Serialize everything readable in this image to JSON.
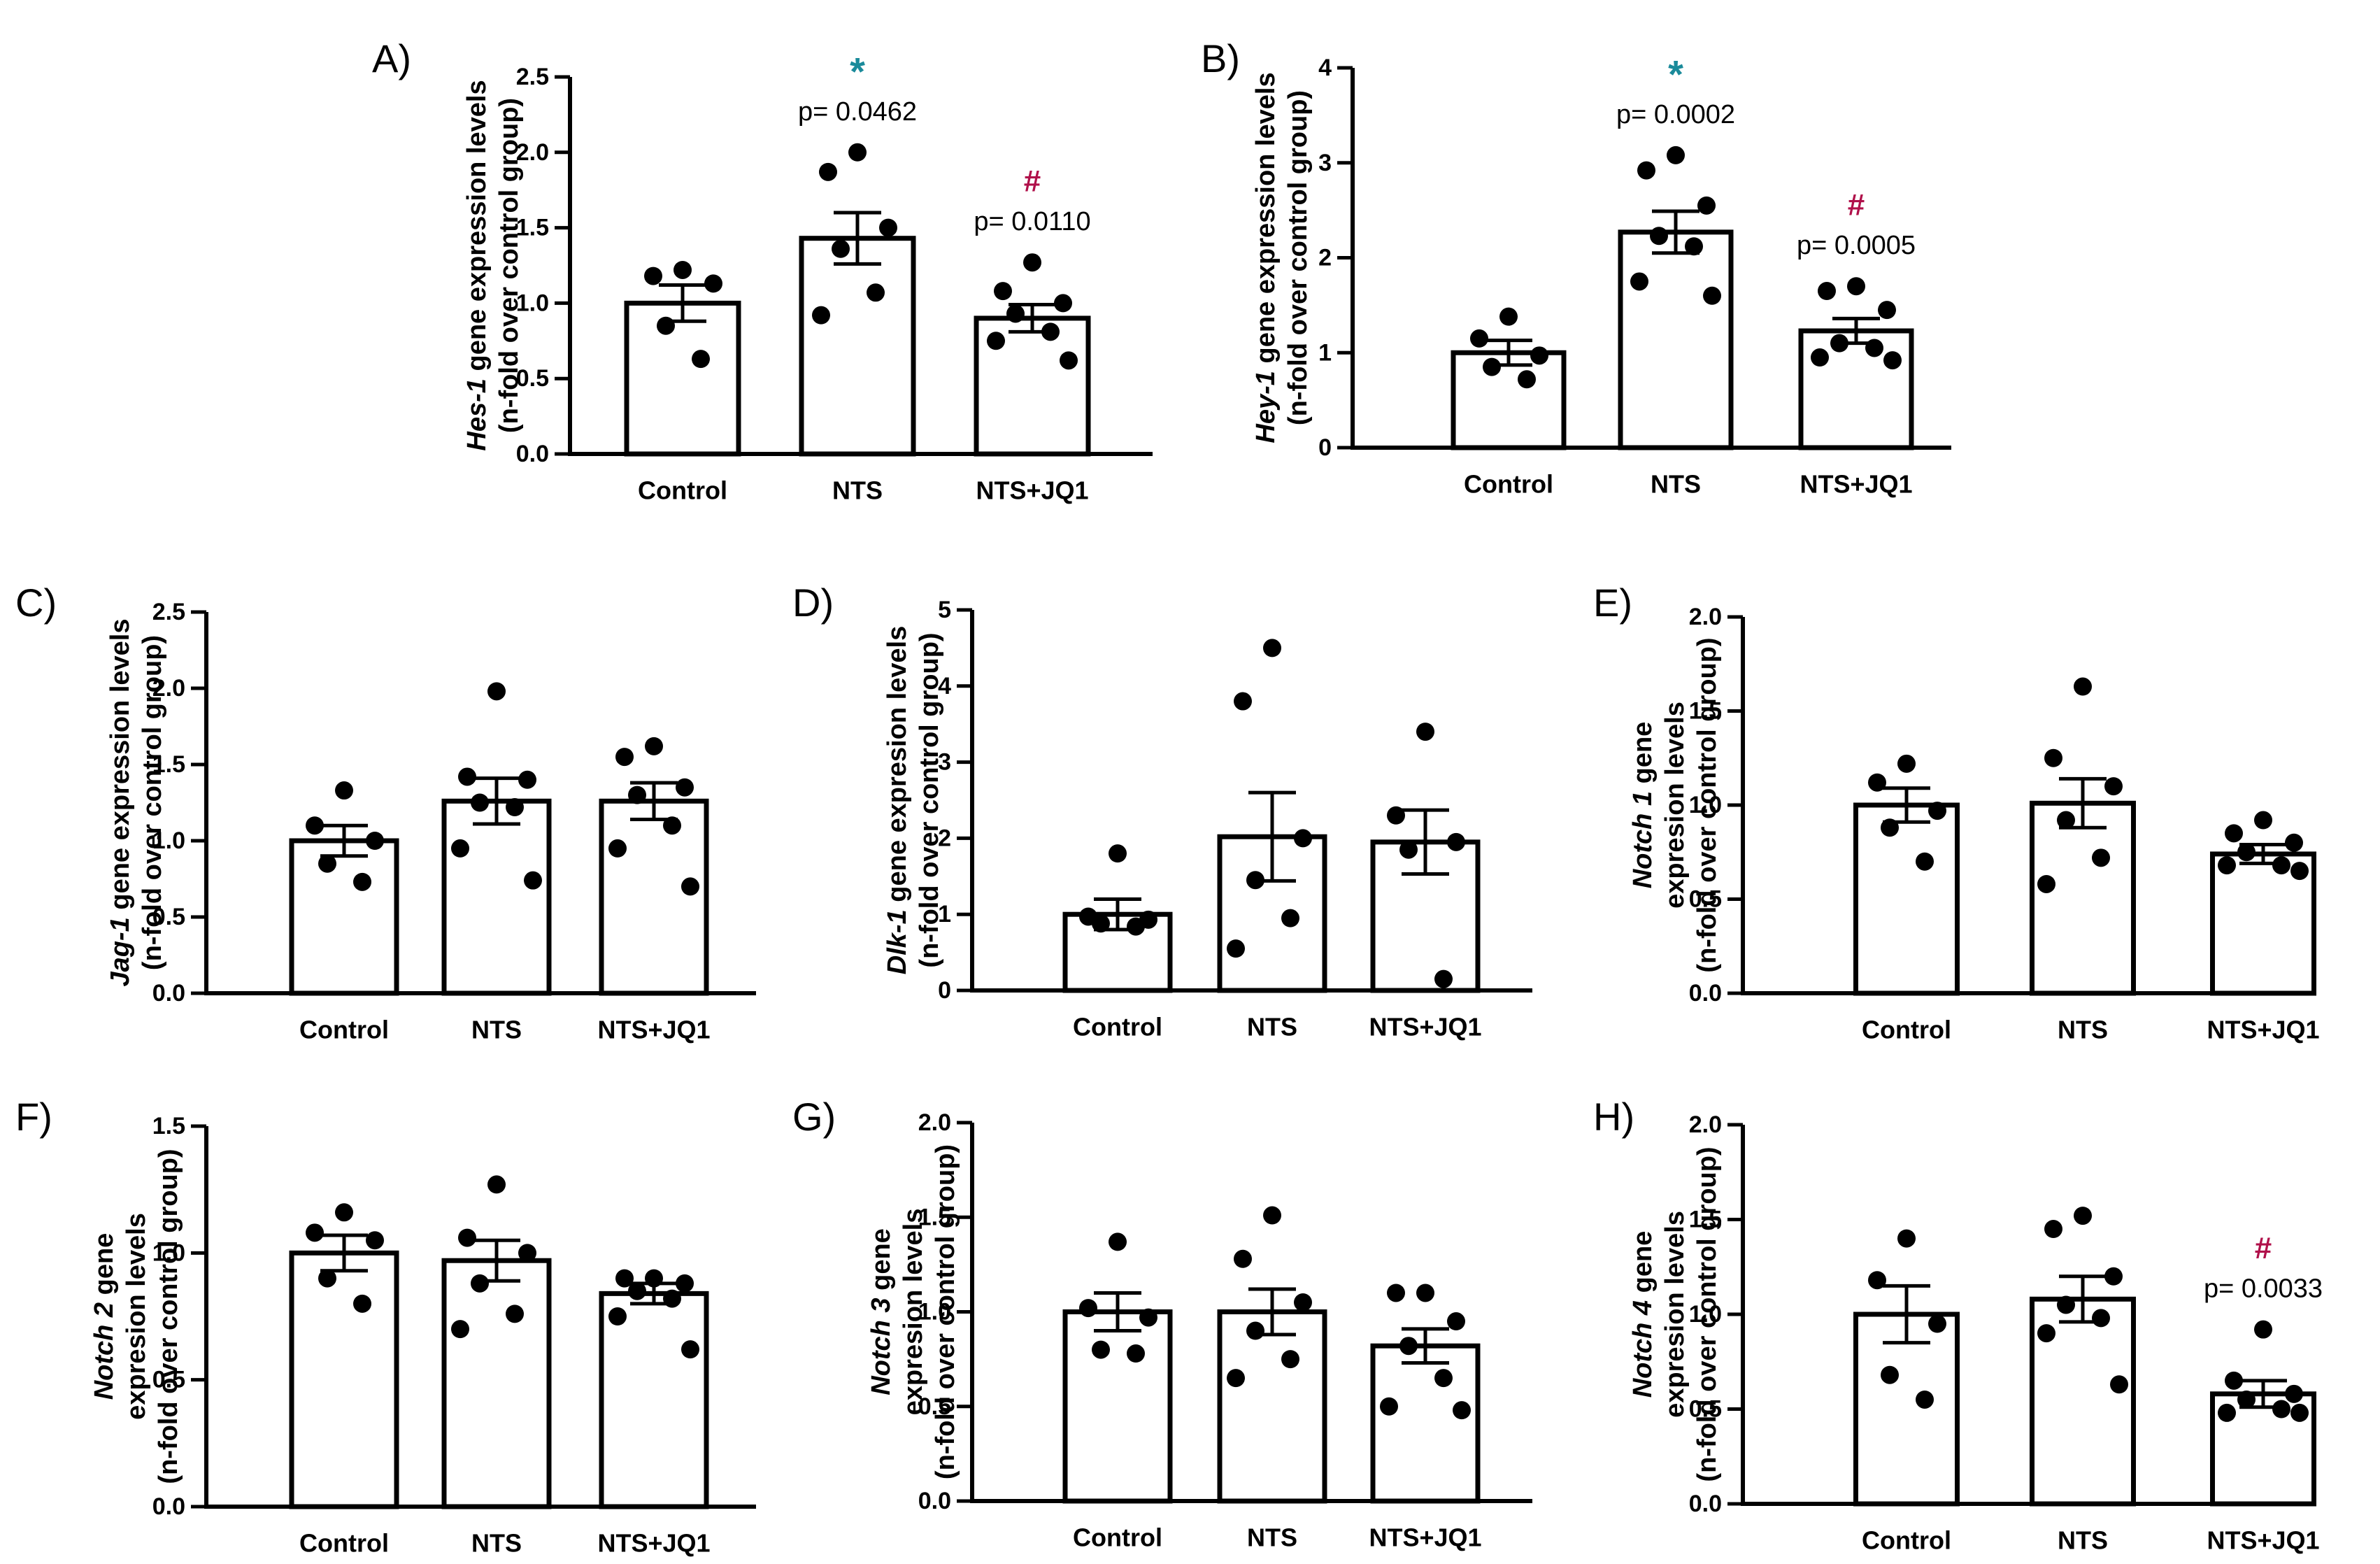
{
  "figure": {
    "categories": [
      "Control",
      "NTS",
      "NTS+JQ1"
    ],
    "colors": {
      "star": "#1a8a9a",
      "hash": "#b0104a",
      "ink": "#000000"
    }
  },
  "chart_data": [
    {
      "panel": "A)",
      "type": "bar",
      "ylabel_italic": "Hes-1",
      "ylabel_rest": " gene expression levels",
      "ylabel_line2": "(n-fold over control group)",
      "categories": [
        "Control",
        "NTS",
        "NTS+JQ1"
      ],
      "ylim": [
        0,
        2.5
      ],
      "yticks": [
        "0.0",
        "0.5",
        "1.0",
        "1.5",
        "2.0",
        "2.5"
      ],
      "series": [
        {
          "name": "mean",
          "values": [
            1.0,
            1.43,
            0.9
          ]
        }
      ],
      "sem": [
        0.12,
        0.17,
        0.09
      ],
      "points": [
        [
          1.22,
          1.18,
          1.13,
          0.85,
          0.63
        ],
        [
          2.0,
          1.87,
          1.5,
          1.36,
          1.07,
          0.92
        ],
        [
          1.27,
          1.08,
          1.0,
          0.93,
          0.81,
          0.75,
          0.62
        ]
      ],
      "annotations": [
        {
          "group": 1,
          "symbol": "*",
          "symbol_color": "star",
          "text": "p= 0.0462"
        },
        {
          "group": 2,
          "symbol": "#",
          "symbol_color": "hash",
          "text": "p= 0.0110"
        }
      ]
    },
    {
      "panel": "B)",
      "type": "bar",
      "ylabel_italic": "Hey-1",
      "ylabel_rest": " gene expression levels",
      "ylabel_line2": "(n-fold over control group)",
      "categories": [
        "Control",
        "NTS",
        "NTS+JQ1"
      ],
      "ylim": [
        0,
        4
      ],
      "yticks": [
        "0",
        "1",
        "2",
        "3",
        "4"
      ],
      "series": [
        {
          "name": "mean",
          "values": [
            1.0,
            2.27,
            1.23
          ]
        }
      ],
      "sem": [
        0.13,
        0.22,
        0.13
      ],
      "points": [
        [
          1.38,
          1.15,
          0.97,
          0.85,
          0.72
        ],
        [
          3.08,
          2.92,
          2.55,
          2.23,
          2.12,
          1.75,
          1.6
        ],
        [
          1.7,
          1.65,
          1.45,
          1.1,
          1.05,
          0.95,
          0.92
        ]
      ],
      "annotations": [
        {
          "group": 1,
          "symbol": "*",
          "symbol_color": "star",
          "text": "p= 0.0002"
        },
        {
          "group": 2,
          "symbol": "#",
          "symbol_color": "hash",
          "text": "p= 0.0005"
        }
      ]
    },
    {
      "panel": "C)",
      "type": "bar",
      "ylabel_italic": "Jag-1",
      "ylabel_rest": " gene expression levels",
      "ylabel_line2": "(n-fold over control group)",
      "categories": [
        "Control",
        "NTS",
        "NTS+JQ1"
      ],
      "ylim": [
        0,
        2.5
      ],
      "yticks": [
        "0.0",
        "0.5",
        "1.0",
        "1.5",
        "2.0",
        "2.5"
      ],
      "series": [
        {
          "name": "mean",
          "values": [
            1.0,
            1.26,
            1.26
          ]
        }
      ],
      "sem": [
        0.1,
        0.15,
        0.12
      ],
      "points": [
        [
          1.33,
          1.1,
          1.0,
          0.85,
          0.73
        ],
        [
          1.98,
          1.42,
          1.4,
          1.25,
          1.22,
          0.95,
          0.74
        ],
        [
          1.62,
          1.55,
          1.35,
          1.3,
          1.1,
          0.95,
          0.7
        ]
      ],
      "annotations": []
    },
    {
      "panel": "D)",
      "type": "bar",
      "ylabel_italic": "Dlk-1",
      "ylabel_rest": " gene expresion levels",
      "ylabel_line2": "(n-fold over control group)",
      "categories": [
        "Control",
        "NTS",
        "NTS+JQ1"
      ],
      "ylim": [
        0,
        5
      ],
      "yticks": [
        "0",
        "1",
        "2",
        "3",
        "4",
        "5"
      ],
      "series": [
        {
          "name": "mean",
          "values": [
            1.0,
            2.02,
            1.95
          ]
        }
      ],
      "sem": [
        0.2,
        0.58,
        0.42
      ],
      "points": [
        [
          1.8,
          0.97,
          0.93,
          0.88,
          0.84
        ],
        [
          4.5,
          3.8,
          2.0,
          1.45,
          0.95,
          0.55
        ],
        [
          3.4,
          2.3,
          1.95,
          1.85,
          0.15
        ]
      ],
      "annotations": []
    },
    {
      "panel": "E)",
      "type": "bar",
      "ylabel_italic": "Notch 1",
      "ylabel_rest": " gene",
      "ylabel_line2": "expresion  levels",
      "ylabel_line3": "(n-fold over control group)",
      "categories": [
        "Control",
        "NTS",
        "NTS+JQ1"
      ],
      "ylim": [
        0,
        2.0
      ],
      "yticks": [
        "0.0",
        "0.5",
        "1.0",
        "1.5",
        "2.0"
      ],
      "series": [
        {
          "name": "mean",
          "values": [
            1.0,
            1.01,
            0.74
          ]
        }
      ],
      "sem": [
        0.09,
        0.13,
        0.05
      ],
      "points": [
        [
          1.22,
          1.12,
          0.97,
          0.88,
          0.7
        ],
        [
          1.63,
          1.25,
          1.1,
          0.92,
          0.72,
          0.58
        ],
        [
          0.92,
          0.85,
          0.8,
          0.75,
          0.68,
          0.68,
          0.65
        ]
      ],
      "annotations": []
    },
    {
      "panel": "F)",
      "type": "bar",
      "ylabel_italic": "Notch 2",
      "ylabel_rest": " gene",
      "ylabel_line2": "expresion levels",
      "ylabel_line3": "(n-fold over control group)",
      "categories": [
        "Control",
        "NTS",
        "NTS+JQ1"
      ],
      "ylim": [
        0,
        1.5
      ],
      "yticks": [
        "0.0",
        "0.5",
        "1.0",
        "1.5"
      ],
      "series": [
        {
          "name": "mean",
          "values": [
            1.0,
            0.97,
            0.84
          ]
        }
      ],
      "sem": [
        0.07,
        0.08,
        0.04
      ],
      "points": [
        [
          1.16,
          1.08,
          1.05,
          0.9,
          0.8
        ],
        [
          1.27,
          1.06,
          1.0,
          0.88,
          0.76,
          0.7
        ],
        [
          0.9,
          0.9,
          0.88,
          0.85,
          0.82,
          0.75,
          0.62
        ]
      ],
      "annotations": []
    },
    {
      "panel": "G)",
      "type": "bar",
      "ylabel_italic": "Notch 3",
      "ylabel_rest": " gene",
      "ylabel_line2": "expresion  levels",
      "ylabel_line3": "(n-fold over control group)",
      "categories": [
        "Control",
        "NTS",
        "NTS+JQ1"
      ],
      "ylim": [
        0,
        2.0
      ],
      "yticks": [
        "0.0",
        "0.5",
        "1.0",
        "1.5",
        "2.0"
      ],
      "series": [
        {
          "name": "mean",
          "values": [
            1.0,
            1.0,
            0.82
          ]
        }
      ],
      "sem": [
        0.1,
        0.12,
        0.09
      ],
      "points": [
        [
          1.37,
          1.02,
          0.97,
          0.8,
          0.78
        ],
        [
          1.51,
          1.28,
          1.05,
          0.9,
          0.75,
          0.65
        ],
        [
          1.1,
          1.1,
          0.95,
          0.82,
          0.65,
          0.5,
          0.48
        ]
      ],
      "annotations": []
    },
    {
      "panel": "H)",
      "type": "bar",
      "ylabel_italic": "Notch 4",
      "ylabel_rest": " gene",
      "ylabel_line2": "expresion levels",
      "ylabel_line3": "(n-fold over control group)",
      "categories": [
        "Control",
        "NTS",
        "NTS+JQ1"
      ],
      "ylim": [
        0,
        2.0
      ],
      "yticks": [
        "0.0",
        "0.5",
        "1.0",
        "1.5",
        "2.0"
      ],
      "series": [
        {
          "name": "mean",
          "values": [
            1.0,
            1.08,
            0.58
          ]
        }
      ],
      "sem": [
        0.15,
        0.12,
        0.07
      ],
      "points": [
        [
          1.4,
          1.18,
          0.95,
          0.68,
          0.55
        ],
        [
          1.52,
          1.45,
          1.2,
          1.05,
          0.98,
          0.9,
          0.63
        ],
        [
          0.92,
          0.65,
          0.58,
          0.55,
          0.5,
          0.48,
          0.48
        ]
      ],
      "annotations": [
        {
          "group": 2,
          "symbol": "#",
          "symbol_color": "hash",
          "text": "p= 0.0033"
        }
      ]
    }
  ]
}
